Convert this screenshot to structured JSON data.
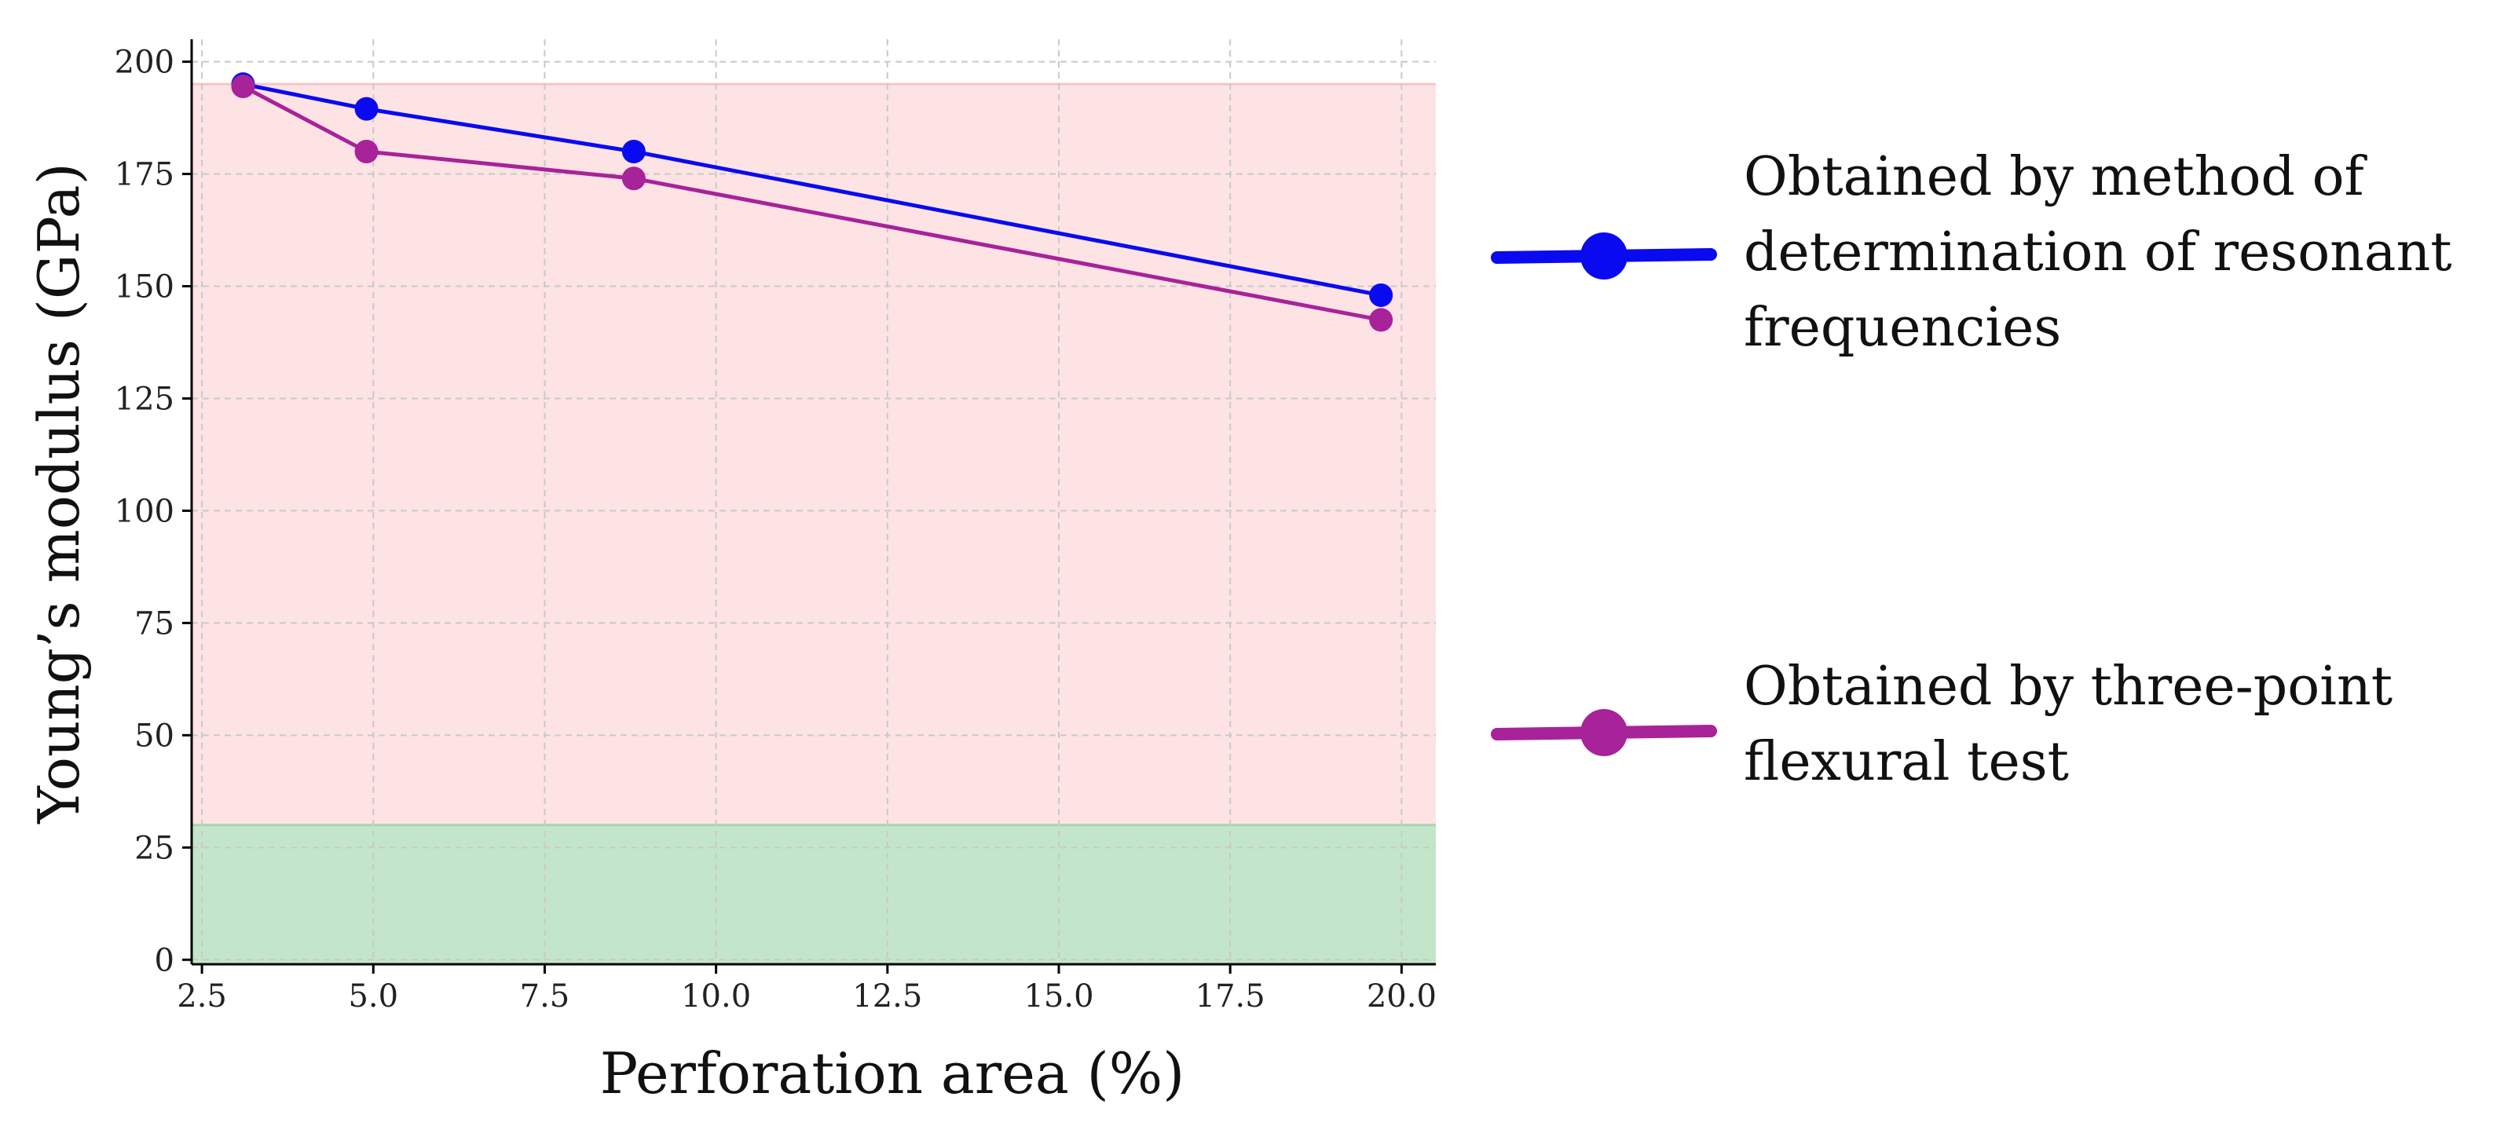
{
  "chart_data": {
    "type": "line",
    "title": "",
    "xlabel": "Perforation area (%)",
    "ylabel": "Young’s modulus (GPa)",
    "xlim": [
      2.35,
      20.5
    ],
    "ylim": [
      -1,
      205
    ],
    "xticks": [
      2.5,
      5.0,
      7.5,
      10.0,
      12.5,
      15.0,
      17.5,
      20.0
    ],
    "xtick_labels": [
      "2.5",
      "5.0",
      "7.5",
      "10.0",
      "12.5",
      "15.0",
      "17.5",
      "20.0"
    ],
    "yticks": [
      0,
      25,
      50,
      75,
      100,
      125,
      150,
      175,
      200
    ],
    "ytick_labels": [
      "0",
      "25",
      "50",
      "75",
      "100",
      "125",
      "150",
      "175",
      "200"
    ],
    "grid": true,
    "legend_position": "right",
    "bands": [
      {
        "y0": 30,
        "y1": 195,
        "color": "#fde3e4",
        "edge": "#f4c6c8"
      },
      {
        "y0": 0,
        "y1": 30,
        "color": "#c3e6cb",
        "edge": "#a8d5b0"
      }
    ],
    "series": [
      {
        "name": "Obtained by method of determination of resonant frequencies",
        "legend_lines": [
          "Obtained by method of",
          "determination of resonant",
          "frequencies"
        ],
        "color": "#0a0af0",
        "x": [
          3.1,
          4.9,
          8.8,
          19.7
        ],
        "y": [
          195,
          189.5,
          180,
          148
        ]
      },
      {
        "name": "Obtained by three-point flexural test",
        "legend_lines": [
          "Obtained by three-point",
          "flexural test"
        ],
        "color": "#a8229a",
        "x": [
          3.1,
          4.9,
          8.8,
          19.7
        ],
        "y": [
          194.5,
          180,
          174,
          142.5
        ]
      }
    ]
  }
}
